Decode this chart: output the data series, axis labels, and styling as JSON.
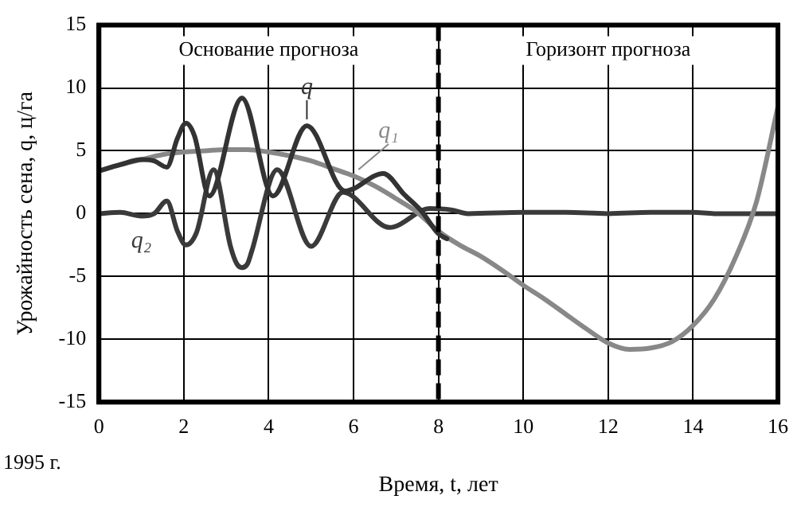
{
  "chart_data": {
    "type": "line",
    "xlabel": "Время, t, лет",
    "ylabel": "Урожайность сена, q, ц/га",
    "xlim": [
      0,
      16
    ],
    "ylim": [
      -15,
      15
    ],
    "xticks": [
      0,
      2,
      4,
      6,
      8,
      10,
      12,
      14,
      16
    ],
    "yticks": [
      -15,
      -10,
      -5,
      0,
      5,
      10,
      15
    ],
    "grid": true,
    "legend": false,
    "marker": "none",
    "line_style": "solid",
    "ref_lines": [
      {
        "axis": "x",
        "value": 8,
        "color": "#000000",
        "line_style": "dashed"
      }
    ],
    "annotations": [
      "Основание прогноза",
      "Горизонт прогноза",
      "1995 г."
    ],
    "series": [
      {
        "name": "q",
        "color": "#333333",
        "x": [
          0,
          0.5,
          1,
          1.3,
          1.6,
          1.85,
          2.05,
          2.25,
          2.6,
          3.37,
          4.1,
          4.9,
          5.8,
          6.7,
          7.2,
          7.6,
          8,
          8.2
        ],
        "values": [
          3.4,
          3.9,
          4.3,
          4.2,
          3.7,
          6,
          7.2,
          6.2,
          1.4,
          9.2,
          1.4,
          7,
          1.8,
          3.2,
          1.5,
          0.2,
          -1.6,
          -2
        ]
      },
      {
        "name": "q₁",
        "color": "#888888",
        "x": [
          0,
          0.5,
          1,
          1.5,
          2,
          2.5,
          3,
          3.5,
          4,
          4.5,
          5,
          5.5,
          6,
          6.5,
          7,
          7.5,
          8,
          8.5,
          9,
          9.5,
          10,
          10.5,
          11,
          11.5,
          12,
          12.5,
          13,
          13.5,
          14,
          14.5,
          15,
          15.5,
          16
        ],
        "values": [
          3.4,
          3.9,
          4.3,
          4.7,
          4.9,
          5,
          5.1,
          5.1,
          4.9,
          4.6,
          4.2,
          3.6,
          3,
          2.2,
          1.2,
          0.1,
          -1.4,
          -2.5,
          -3.4,
          -4.5,
          -5.7,
          -6.8,
          -8,
          -9.2,
          -10.3,
          -10.8,
          -10.7,
          -10.2,
          -8.9,
          -6.8,
          -3.5,
          1,
          8.5
        ]
      },
      {
        "name": "q₂",
        "color": "#3a3a3a",
        "x": [
          0,
          0.5,
          1,
          1.3,
          1.6,
          1.85,
          2.05,
          2.3,
          2.7,
          3.1,
          3.25,
          3.37,
          3.5,
          3.6,
          4.2,
          5,
          5.75,
          6.85,
          7.8,
          8.3,
          8.7,
          10,
          11,
          12,
          13,
          14,
          14.5,
          16
        ],
        "values": [
          0,
          0.1,
          -0.2,
          0,
          1,
          -1.4,
          -2.5,
          -1.5,
          3.5,
          -2.6,
          -4,
          -4.3,
          -4,
          -3,
          3.5,
          -2.6,
          1.7,
          -1.1,
          0.4,
          0.3,
          0,
          0.1,
          0.1,
          0,
          0.1,
          0.1,
          0,
          0
        ]
      }
    ]
  }
}
